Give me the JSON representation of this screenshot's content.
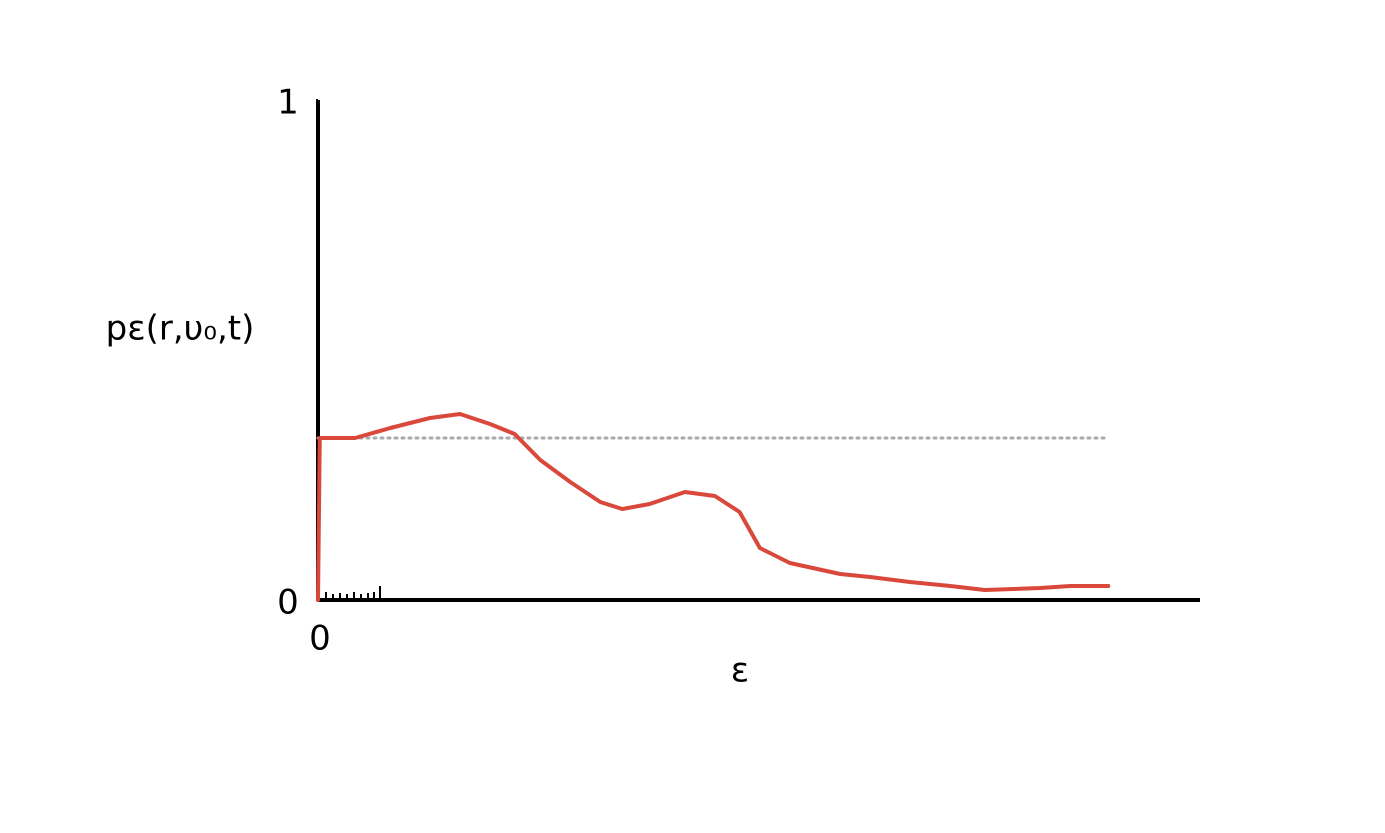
{
  "chart_data": {
    "type": "line",
    "x_label": "ε",
    "y_label": "pε(r,υ₀,t)",
    "xlim": [
      0,
      1
    ],
    "ylim": [
      0,
      1
    ],
    "xticks": [
      0
    ],
    "yticks": [
      0,
      1
    ],
    "grid": false,
    "reference_line": {
      "y": 0.324,
      "x_end": 0.896,
      "color": "#a9a9b0"
    },
    "x": [
      0,
      0.002,
      0.042,
      0.082,
      0.127,
      0.161,
      0.195,
      0.223,
      0.252,
      0.286,
      0.32,
      0.345,
      0.376,
      0.416,
      0.45,
      0.478,
      0.501,
      0.535,
      0.592,
      0.626,
      0.671,
      0.717,
      0.756,
      0.819,
      0.853,
      0.896
    ],
    "series": [
      {
        "color": "#d9483b",
        "values": [
          0,
          0.324,
          0.324,
          0.344,
          0.364,
          0.372,
          0.352,
          0.332,
          0.28,
          0.236,
          0.196,
          0.182,
          0.192,
          0.216,
          0.208,
          0.176,
          0.104,
          0.074,
          0.052,
          0.046,
          0.036,
          0.028,
          0.02,
          0.024,
          0.028,
          0.028
        ]
      }
    ]
  }
}
